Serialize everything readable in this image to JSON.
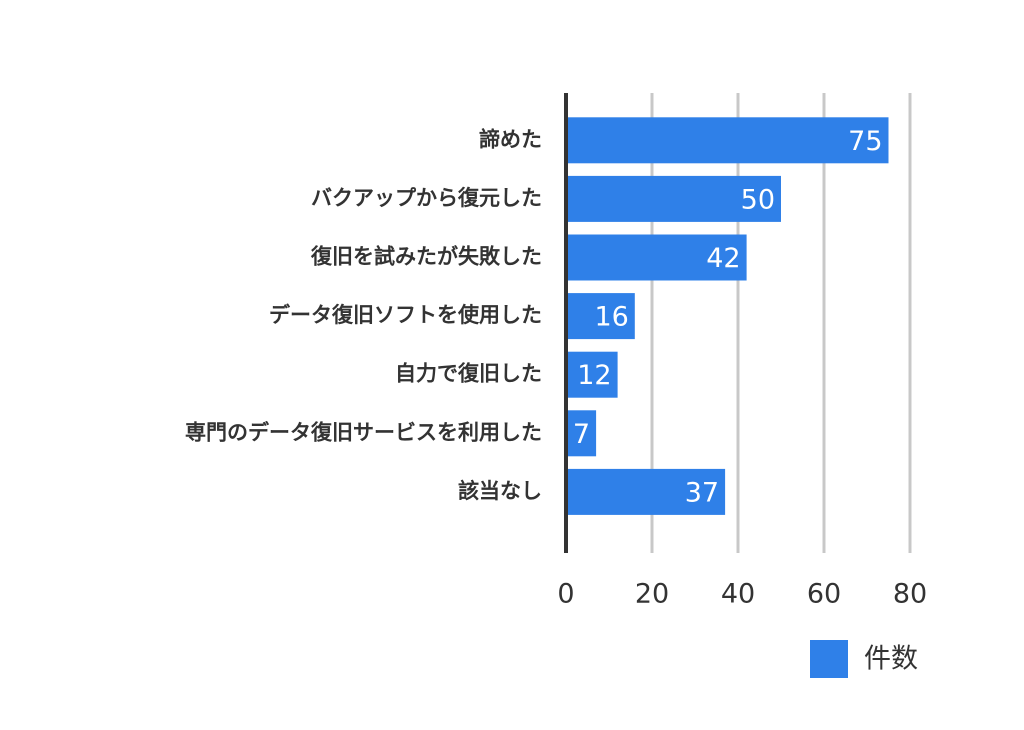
{
  "chart_data": {
    "type": "bar",
    "orientation": "horizontal",
    "categories": [
      "諦めた",
      "バクアップから復元した",
      "復旧を試みたが失敗した",
      "データ復旧ソフトを使用した",
      "自力で復旧した",
      "専門のデータ復旧サービスを利用した",
      "該当なし"
    ],
    "series": [
      {
        "name": "件数",
        "color": "#2f80e8",
        "values": [
          75,
          50,
          42,
          16,
          12,
          7,
          37
        ]
      }
    ],
    "xlim": [
      0,
      80
    ],
    "xticks": [
      0,
      20,
      40,
      60,
      80
    ],
    "grid": true,
    "legend": "bottom-right"
  }
}
